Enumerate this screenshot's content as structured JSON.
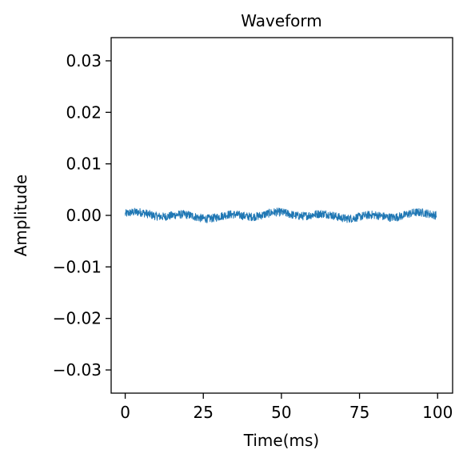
{
  "chart_data": {
    "type": "line",
    "title": "Waveform",
    "xlabel": "Time(ms)",
    "ylabel": "Amplitude",
    "xlim": [
      -4.5,
      104.8
    ],
    "ylim": [
      -0.0345,
      0.0345
    ],
    "xticks": [
      0,
      25,
      50,
      75,
      100
    ],
    "xtick_labels": [
      "0",
      "25",
      "50",
      "75",
      "100"
    ],
    "yticks": [
      -0.03,
      -0.02,
      -0.01,
      0.0,
      0.01,
      0.02,
      0.03
    ],
    "ytick_labels": [
      "−0.03",
      "−0.02",
      "−0.01",
      "0.00",
      "0.01",
      "0.02",
      "0.03"
    ],
    "grid": false,
    "series": [
      {
        "color": "#1f77b4",
        "x_range": [
          0,
          99.6
        ],
        "samples": 1200,
        "approx_amplitude": 0.0008,
        "peak_abs": 0.0022
      }
    ]
  }
}
